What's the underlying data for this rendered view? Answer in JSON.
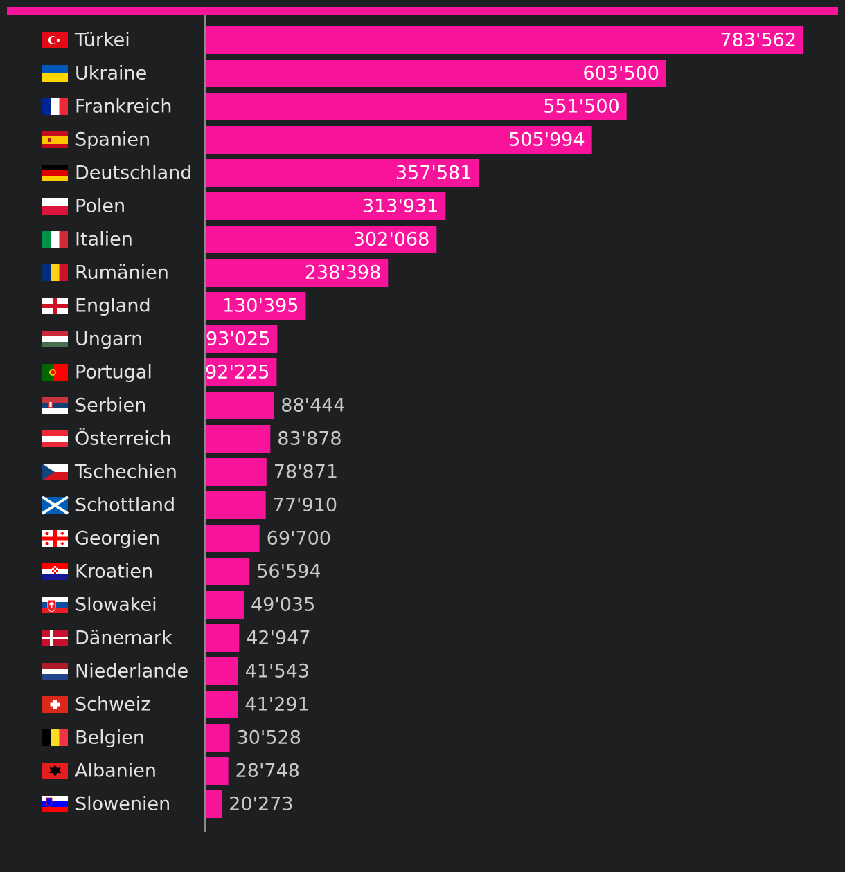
{
  "colors": {
    "background": "#1e1f21",
    "bar": "#f8139b",
    "top_rule": "#f8139b",
    "axis": "#8a8a8a",
    "label_text": "#e3e3e3",
    "value_inside": "#ffffff",
    "value_outside": "#c8c8c8"
  },
  "chart_data": {
    "type": "bar",
    "orientation": "horizontal",
    "xlim": [
      0,
      783562
    ],
    "grid": false,
    "legend": "none",
    "categories": [
      "Türkei",
      "Ukraine",
      "Frankreich",
      "Spanien",
      "Deutschland",
      "Polen",
      "Italien",
      "Rumänien",
      "England",
      "Ungarn",
      "Portugal",
      "Serbien",
      "Österreich",
      "Tschechien",
      "Schottland",
      "Georgien",
      "Kroatien",
      "Slowakei",
      "Dänemark",
      "Niederlande",
      "Schweiz",
      "Belgien",
      "Albanien",
      "Slowenien"
    ],
    "flags": [
      "tr",
      "ua",
      "fr",
      "es",
      "de",
      "pl",
      "it",
      "ro",
      "gb-eng",
      "hu",
      "pt",
      "rs",
      "at",
      "cz",
      "gb-sct",
      "ge",
      "hr",
      "sk",
      "dk",
      "nl",
      "ch",
      "be",
      "al",
      "si"
    ],
    "values": [
      783562,
      603500,
      551500,
      505994,
      357581,
      313931,
      302068,
      238398,
      130395,
      93025,
      92225,
      88444,
      83878,
      78871,
      77910,
      69700,
      56594,
      49035,
      42947,
      41543,
      41291,
      30528,
      28748,
      20273
    ],
    "value_labels": [
      "783'562",
      "603'500",
      "551'500",
      "505'994",
      "357'581",
      "313'931",
      "302'068",
      "238'398",
      "130'395",
      "93'025",
      "92'225",
      "88'444",
      "83'878",
      "78'871",
      "77'910",
      "69'700",
      "56'594",
      "49'035",
      "42'947",
      "41'543",
      "41'291",
      "30'528",
      "28'748",
      "20'273"
    ]
  }
}
